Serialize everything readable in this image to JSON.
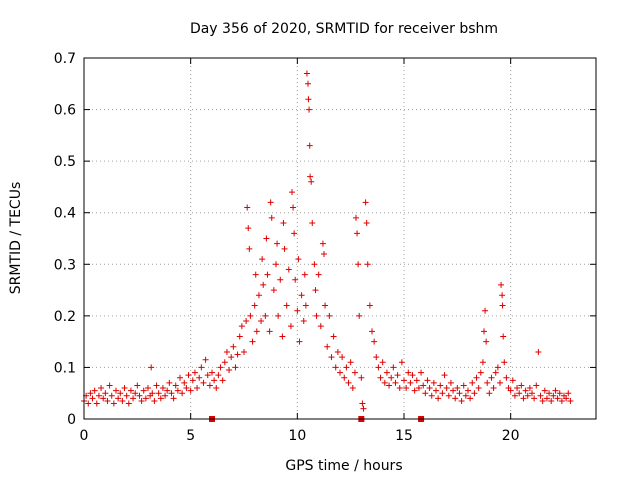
{
  "chart_data": {
    "type": "scatter",
    "title": "Day 356 of 2020, SRMTID for receiver bshm",
    "xlabel": "GPS time / hours",
    "ylabel": "SRMTID / TECUs",
    "xlim": [
      0,
      24
    ],
    "ylim": [
      0,
      0.7
    ],
    "xticks": [
      0,
      5,
      10,
      15,
      20
    ],
    "xtick_labels": [
      "0",
      "5",
      "10",
      "15",
      "20"
    ],
    "yticks": [
      0,
      0.1,
      0.2,
      0.3,
      0.4,
      0.5,
      0.6,
      0.7
    ],
    "ytick_labels": [
      "0",
      "0.1",
      "0.2",
      "0.3",
      "0.4",
      "0.5",
      "0.6",
      "0.7"
    ],
    "grid": true,
    "marker": "+",
    "color": "#e00000",
    "series": [
      {
        "name": "SRMTID",
        "points": [
          [
            0.0,
            0.035
          ],
          [
            0.1,
            0.045
          ],
          [
            0.2,
            0.03
          ],
          [
            0.3,
            0.05
          ],
          [
            0.4,
            0.04
          ],
          [
            0.5,
            0.055
          ],
          [
            0.6,
            0.03
          ],
          [
            0.7,
            0.045
          ],
          [
            0.8,
            0.06
          ],
          [
            0.9,
            0.04
          ],
          [
            1.0,
            0.05
          ],
          [
            1.1,
            0.035
          ],
          [
            1.2,
            0.065
          ],
          [
            1.3,
            0.045
          ],
          [
            1.4,
            0.03
          ],
          [
            1.5,
            0.055
          ],
          [
            1.6,
            0.04
          ],
          [
            1.7,
            0.05
          ],
          [
            1.8,
            0.035
          ],
          [
            1.9,
            0.06
          ],
          [
            2.0,
            0.045
          ],
          [
            2.1,
            0.03
          ],
          [
            2.2,
            0.055
          ],
          [
            2.3,
            0.04
          ],
          [
            2.4,
            0.05
          ],
          [
            2.5,
            0.065
          ],
          [
            2.6,
            0.045
          ],
          [
            2.7,
            0.035
          ],
          [
            2.8,
            0.055
          ],
          [
            2.9,
            0.04
          ],
          [
            3.0,
            0.06
          ],
          [
            3.1,
            0.045
          ],
          [
            3.15,
            0.1
          ],
          [
            3.2,
            0.05
          ],
          [
            3.3,
            0.035
          ],
          [
            3.4,
            0.065
          ],
          [
            3.5,
            0.05
          ],
          [
            3.6,
            0.04
          ],
          [
            3.7,
            0.06
          ],
          [
            3.8,
            0.045
          ],
          [
            3.9,
            0.055
          ],
          [
            4.0,
            0.07
          ],
          [
            4.1,
            0.05
          ],
          [
            4.2,
            0.04
          ],
          [
            4.3,
            0.065
          ],
          [
            4.4,
            0.055
          ],
          [
            4.5,
            0.08
          ],
          [
            4.6,
            0.05
          ],
          [
            4.7,
            0.07
          ],
          [
            4.8,
            0.06
          ],
          [
            4.9,
            0.085
          ],
          [
            5.0,
            0.055
          ],
          [
            5.1,
            0.075
          ],
          [
            5.2,
            0.09
          ],
          [
            5.3,
            0.06
          ],
          [
            5.4,
            0.08
          ],
          [
            5.5,
            0.1
          ],
          [
            5.6,
            0.07
          ],
          [
            5.7,
            0.115
          ],
          [
            5.8,
            0.085
          ],
          [
            5.9,
            0.065
          ],
          [
            6.0,
            0.09
          ],
          [
            6.1,
            0.075
          ],
          [
            6.2,
            0.06
          ],
          [
            6.3,
            0.085
          ],
          [
            6.4,
            0.1
          ],
          [
            6.5,
            0.075
          ],
          [
            6.6,
            0.11
          ],
          [
            6.7,
            0.13
          ],
          [
            6.8,
            0.095
          ],
          [
            6.9,
            0.12
          ],
          [
            7.0,
            0.14
          ],
          [
            7.1,
            0.1
          ],
          [
            7.2,
            0.125
          ],
          [
            7.3,
            0.16
          ],
          [
            7.4,
            0.18
          ],
          [
            7.5,
            0.13
          ],
          [
            7.6,
            0.19
          ],
          [
            7.65,
            0.41
          ],
          [
            7.7,
            0.37
          ],
          [
            7.75,
            0.33
          ],
          [
            7.8,
            0.2
          ],
          [
            7.9,
            0.15
          ],
          [
            8.0,
            0.22
          ],
          [
            8.05,
            0.28
          ],
          [
            8.1,
            0.17
          ],
          [
            8.2,
            0.24
          ],
          [
            8.3,
            0.19
          ],
          [
            8.35,
            0.31
          ],
          [
            8.4,
            0.26
          ],
          [
            8.5,
            0.2
          ],
          [
            8.55,
            0.35
          ],
          [
            8.6,
            0.28
          ],
          [
            8.7,
            0.17
          ],
          [
            8.75,
            0.42
          ],
          [
            8.8,
            0.39
          ],
          [
            8.9,
            0.25
          ],
          [
            9.0,
            0.3
          ],
          [
            9.05,
            0.34
          ],
          [
            9.1,
            0.2
          ],
          [
            9.2,
            0.27
          ],
          [
            9.3,
            0.16
          ],
          [
            9.35,
            0.38
          ],
          [
            9.4,
            0.33
          ],
          [
            9.5,
            0.22
          ],
          [
            9.6,
            0.29
          ],
          [
            9.7,
            0.18
          ],
          [
            9.75,
            0.44
          ],
          [
            9.8,
            0.41
          ],
          [
            9.85,
            0.36
          ],
          [
            9.9,
            0.27
          ],
          [
            10.0,
            0.21
          ],
          [
            10.05,
            0.31
          ],
          [
            10.1,
            0.15
          ],
          [
            10.2,
            0.24
          ],
          [
            10.3,
            0.19
          ],
          [
            10.35,
            0.28
          ],
          [
            10.4,
            0.22
          ],
          [
            10.45,
            0.67
          ],
          [
            10.5,
            0.65
          ],
          [
            10.52,
            0.62
          ],
          [
            10.55,
            0.6
          ],
          [
            10.58,
            0.53
          ],
          [
            10.6,
            0.47
          ],
          [
            10.65,
            0.46
          ],
          [
            10.7,
            0.38
          ],
          [
            10.8,
            0.3
          ],
          [
            10.85,
            0.25
          ],
          [
            10.9,
            0.2
          ],
          [
            11.0,
            0.28
          ],
          [
            11.1,
            0.18
          ],
          [
            11.2,
            0.34
          ],
          [
            11.25,
            0.32
          ],
          [
            11.3,
            0.22
          ],
          [
            11.4,
            0.14
          ],
          [
            11.5,
            0.2
          ],
          [
            11.6,
            0.12
          ],
          [
            11.7,
            0.16
          ],
          [
            11.8,
            0.1
          ],
          [
            11.9,
            0.13
          ],
          [
            12.0,
            0.09
          ],
          [
            12.1,
            0.12
          ],
          [
            12.2,
            0.08
          ],
          [
            12.3,
            0.1
          ],
          [
            12.4,
            0.07
          ],
          [
            12.5,
            0.11
          ],
          [
            12.6,
            0.06
          ],
          [
            12.7,
            0.09
          ],
          [
            12.75,
            0.39
          ],
          [
            12.8,
            0.36
          ],
          [
            12.85,
            0.3
          ],
          [
            12.9,
            0.2
          ],
          [
            13.0,
            0.08
          ],
          [
            13.05,
            0.03
          ],
          [
            13.1,
            0.02
          ],
          [
            13.2,
            0.42
          ],
          [
            13.25,
            0.38
          ],
          [
            13.3,
            0.3
          ],
          [
            13.4,
            0.22
          ],
          [
            13.5,
            0.17
          ],
          [
            13.6,
            0.15
          ],
          [
            13.7,
            0.12
          ],
          [
            13.8,
            0.1
          ],
          [
            13.9,
            0.08
          ],
          [
            14.0,
            0.11
          ],
          [
            14.1,
            0.07
          ],
          [
            14.2,
            0.09
          ],
          [
            14.3,
            0.065
          ],
          [
            14.4,
            0.08
          ],
          [
            14.5,
            0.1
          ],
          [
            14.6,
            0.07
          ],
          [
            14.7,
            0.085
          ],
          [
            14.8,
            0.06
          ],
          [
            14.9,
            0.11
          ],
          [
            15.0,
            0.075
          ],
          [
            15.1,
            0.06
          ],
          [
            15.2,
            0.09
          ],
          [
            15.3,
            0.07
          ],
          [
            15.4,
            0.085
          ],
          [
            15.5,
            0.055
          ],
          [
            15.6,
            0.075
          ],
          [
            15.7,
            0.06
          ],
          [
            15.8,
            0.09
          ],
          [
            15.9,
            0.065
          ],
          [
            16.0,
            0.05
          ],
          [
            16.1,
            0.075
          ],
          [
            16.2,
            0.06
          ],
          [
            16.3,
            0.045
          ],
          [
            16.4,
            0.07
          ],
          [
            16.5,
            0.055
          ],
          [
            16.6,
            0.04
          ],
          [
            16.7,
            0.065
          ],
          [
            16.8,
            0.05
          ],
          [
            16.9,
            0.085
          ],
          [
            17.0,
            0.06
          ],
          [
            17.1,
            0.045
          ],
          [
            17.2,
            0.07
          ],
          [
            17.3,
            0.055
          ],
          [
            17.4,
            0.04
          ],
          [
            17.5,
            0.06
          ],
          [
            17.6,
            0.05
          ],
          [
            17.7,
            0.035
          ],
          [
            17.8,
            0.065
          ],
          [
            17.9,
            0.045
          ],
          [
            18.0,
            0.055
          ],
          [
            18.1,
            0.04
          ],
          [
            18.2,
            0.07
          ],
          [
            18.3,
            0.05
          ],
          [
            18.4,
            0.08
          ],
          [
            18.5,
            0.06
          ],
          [
            18.6,
            0.09
          ],
          [
            18.7,
            0.11
          ],
          [
            18.75,
            0.17
          ],
          [
            18.8,
            0.21
          ],
          [
            18.85,
            0.15
          ],
          [
            18.9,
            0.07
          ],
          [
            19.0,
            0.05
          ],
          [
            19.1,
            0.08
          ],
          [
            19.2,
            0.06
          ],
          [
            19.3,
            0.09
          ],
          [
            19.4,
            0.1
          ],
          [
            19.5,
            0.07
          ],
          [
            19.55,
            0.26
          ],
          [
            19.6,
            0.24
          ],
          [
            19.62,
            0.22
          ],
          [
            19.65,
            0.16
          ],
          [
            19.7,
            0.11
          ],
          [
            19.8,
            0.08
          ],
          [
            19.9,
            0.06
          ],
          [
            20.0,
            0.055
          ],
          [
            20.1,
            0.075
          ],
          [
            20.2,
            0.045
          ],
          [
            20.3,
            0.06
          ],
          [
            20.4,
            0.05
          ],
          [
            20.5,
            0.065
          ],
          [
            20.6,
            0.04
          ],
          [
            20.7,
            0.055
          ],
          [
            20.8,
            0.045
          ],
          [
            20.9,
            0.06
          ],
          [
            21.0,
            0.05
          ],
          [
            21.1,
            0.04
          ],
          [
            21.2,
            0.065
          ],
          [
            21.3,
            0.13
          ],
          [
            21.4,
            0.045
          ],
          [
            21.5,
            0.035
          ],
          [
            21.6,
            0.055
          ],
          [
            21.7,
            0.04
          ],
          [
            21.8,
            0.05
          ],
          [
            21.9,
            0.035
          ],
          [
            22.0,
            0.045
          ],
          [
            22.1,
            0.055
          ],
          [
            22.2,
            0.04
          ],
          [
            22.3,
            0.05
          ],
          [
            22.4,
            0.035
          ],
          [
            22.5,
            0.045
          ],
          [
            22.6,
            0.04
          ],
          [
            22.7,
            0.05
          ],
          [
            22.8,
            0.035
          ]
        ]
      }
    ],
    "axis_markers_x": [
      6.0,
      13.0,
      15.8
    ]
  }
}
